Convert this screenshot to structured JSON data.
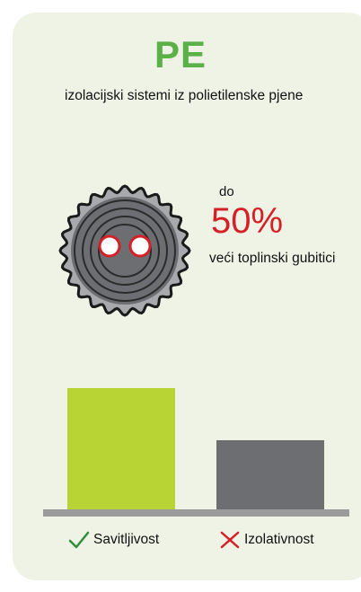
{
  "header": {
    "title": "PE",
    "subtitle": "izolacijski sistemi iz polietilenske pjene"
  },
  "stat": {
    "prefix": "do",
    "value": "50%",
    "description": "veći toplinski gubitici"
  },
  "colors": {
    "card_background": "#eef3e6",
    "title": "#5bb048",
    "stat_value": "#d52027",
    "bar_primary": "#b8d334",
    "bar_secondary": "#6d6e71",
    "baseline": "#9b9b9b"
  },
  "icons": {
    "cable": "pipe-cross-section-icon",
    "positive": "checkmark-icon",
    "negative": "cross-icon"
  },
  "chart_data": {
    "type": "bar",
    "categories": [
      "Savitljivost",
      "Izolativnost"
    ],
    "values": [
      1.0,
      0.57
    ]
  },
  "legend": {
    "items": [
      {
        "label": "Savitljivost",
        "icon": "checkmark-icon"
      },
      {
        "label": "Izolativnost",
        "icon": "cross-icon"
      }
    ]
  }
}
